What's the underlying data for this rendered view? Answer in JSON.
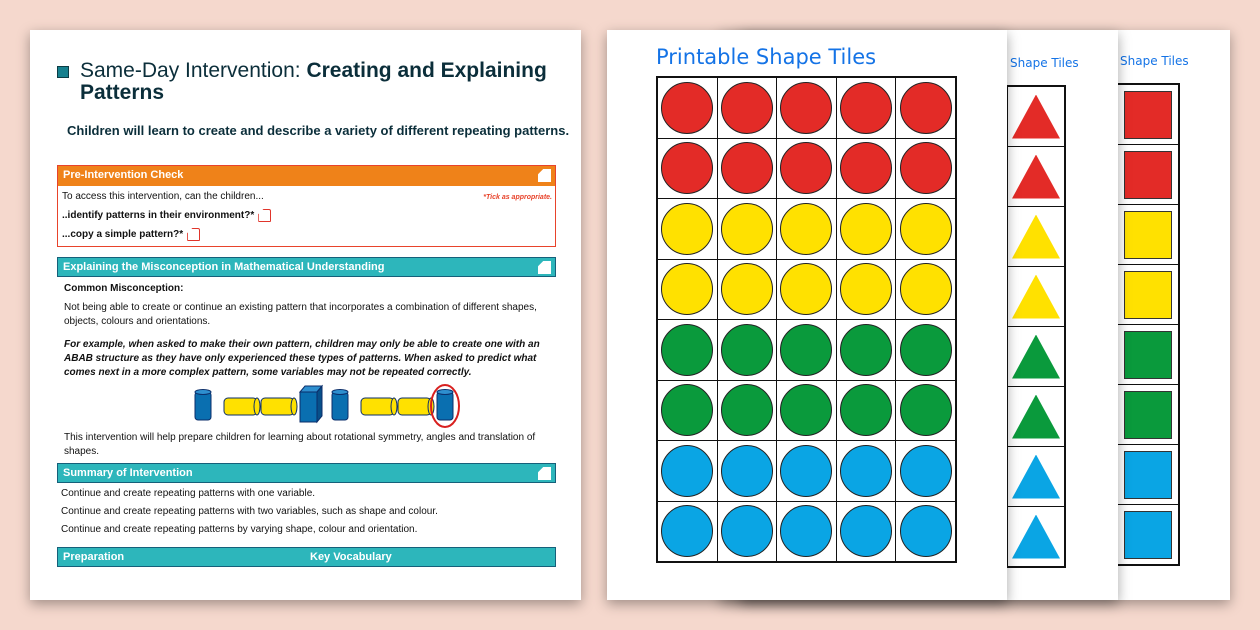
{
  "intervention": {
    "title_prefix": "Same-Day Intervention: ",
    "title_bold": "Creating and Explaining Patterns",
    "subtitle": "Children will learn to create and describe a variety of different repeating patterns.",
    "pre_check": {
      "header": "Pre-Intervention Check",
      "intro": "To access this intervention, can the children...",
      "tick_note": "*Tick as appropriate.",
      "items": [
        "..identify patterns in their environment?*",
        "...copy a simple pattern?*"
      ]
    },
    "misconception": {
      "header": "Explaining the Misconception in Mathematical Understanding",
      "label": "Common Misconception:",
      "text": "Not being able to create or continue an existing pattern that incorporates a combination of different shapes, objects, colours and orientations.",
      "example": "For example, when asked to make their own pattern, children may only be able to create one with an ABAB structure as they have only experienced these types of patterns. When asked to predict what comes next in a more complex pattern, some variables may not be repeated correctly.",
      "prepare": "This intervention will help prepare children for learning about rotational symmetry, angles and translation of shapes."
    },
    "summary": {
      "header": "Summary of Intervention",
      "items": [
        "Continue and create repeating patterns with one variable.",
        "Continue and create repeating patterns with two variables, such as shape and colour.",
        "Continue and create repeating patterns by varying shape, colour and orientation."
      ]
    },
    "bottom_headers": [
      "Preparation",
      "Key Vocabulary"
    ]
  },
  "tiles": {
    "title": "Printable Shape Tiles",
    "partial_title": "Shape Tiles",
    "row_colors": [
      "#e32b27",
      "#e32b27",
      "#ffe100",
      "#ffe100",
      "#0a9a3c",
      "#0a9a3c",
      "#0aa5e4",
      "#0aa5e4"
    ],
    "columns": 5
  },
  "colors": {
    "background": "#f5d8cd",
    "orange": "#ef8219",
    "teal": "#2db6bb",
    "title_blue": "#1473e6"
  }
}
